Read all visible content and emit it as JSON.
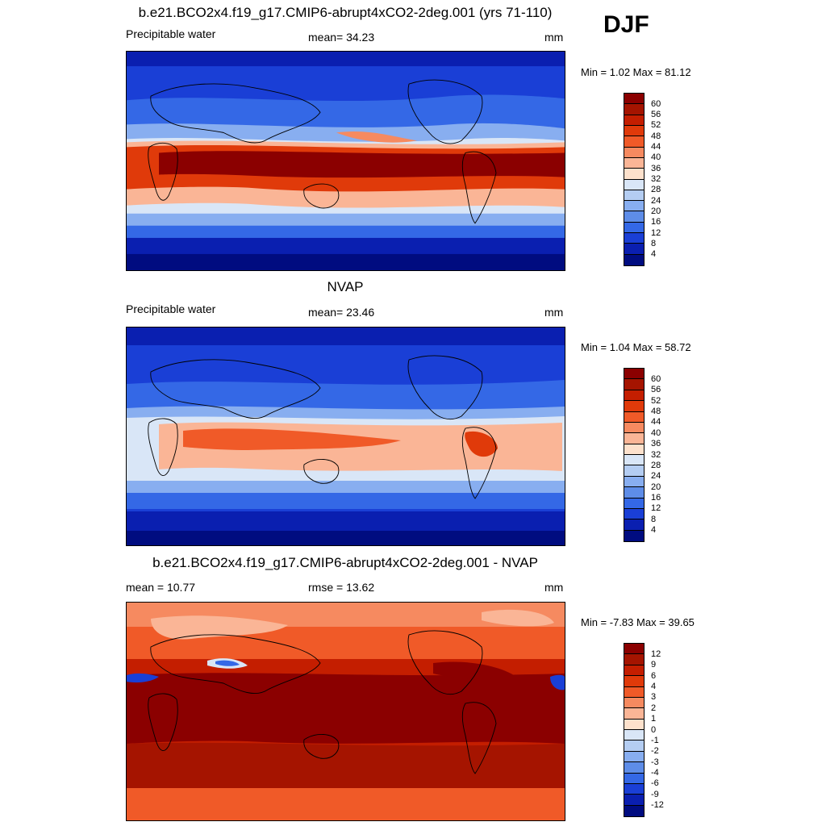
{
  "season": "DJF",
  "panels": [
    {
      "id": "model",
      "title": "b.e21.BCO2x4.f19_g17.CMIP6-abrupt4xCO2-2deg.001 (yrs 71-110)",
      "left_text": "Precipitable water",
      "center_text": "mean=  34.23",
      "units": "mm",
      "minmax": "Min =   1.02 Max =  81.12",
      "colorbar_ticks": [
        "60",
        "56",
        "52",
        "48",
        "44",
        "40",
        "36",
        "32",
        "28",
        "24",
        "20",
        "16",
        "12",
        "8",
        "4"
      ],
      "colors": [
        "#8b0000",
        "#a51400",
        "#c41e00",
        "#e03a0a",
        "#f05a28",
        "#f68a60",
        "#fab596",
        "#fde1cc",
        "#d9e6f7",
        "#b4cdf2",
        "#88aef0",
        "#5e8de8",
        "#3468e6",
        "#1a3fd6",
        "#0a1fb0",
        "#000c80"
      ],
      "map_style": "model"
    },
    {
      "id": "obs",
      "title": "NVAP",
      "left_text": "Precipitable water",
      "center_text": "mean=  23.46",
      "units": "mm",
      "minmax": "Min =   1.04 Max =  58.72",
      "colorbar_ticks": [
        "60",
        "56",
        "52",
        "48",
        "44",
        "40",
        "36",
        "32",
        "28",
        "24",
        "20",
        "16",
        "12",
        "8",
        "4"
      ],
      "colors": [
        "#8b0000",
        "#a51400",
        "#c41e00",
        "#e03a0a",
        "#f05a28",
        "#f68a60",
        "#fab596",
        "#fde1cc",
        "#d9e6f7",
        "#b4cdf2",
        "#88aef0",
        "#5e8de8",
        "#3468e6",
        "#1a3fd6",
        "#0a1fb0",
        "#000c80"
      ],
      "map_style": "obs"
    },
    {
      "id": "diff",
      "title": "b.e21.BCO2x4.f19_g17.CMIP6-abrupt4xCO2-2deg.001 - NVAP",
      "left_text": "mean =  10.77",
      "center_text": "rmse =  13.62",
      "units": "mm",
      "minmax": "Min =  -7.83 Max =  39.65",
      "colorbar_ticks": [
        "12",
        "9",
        "6",
        "4",
        "3",
        "2",
        "1",
        "0",
        "-1",
        "-2",
        "-3",
        "-4",
        "-6",
        "-9",
        "-12"
      ],
      "colors": [
        "#8b0000",
        "#a51400",
        "#c41e00",
        "#e03a0a",
        "#f05a28",
        "#f68a60",
        "#fab596",
        "#fde1cc",
        "#d9e6f7",
        "#b4cdf2",
        "#88aef0",
        "#5e8de8",
        "#3468e6",
        "#1a3fd6",
        "#0a1fb0",
        "#000c80"
      ],
      "map_style": "diff"
    }
  ]
}
